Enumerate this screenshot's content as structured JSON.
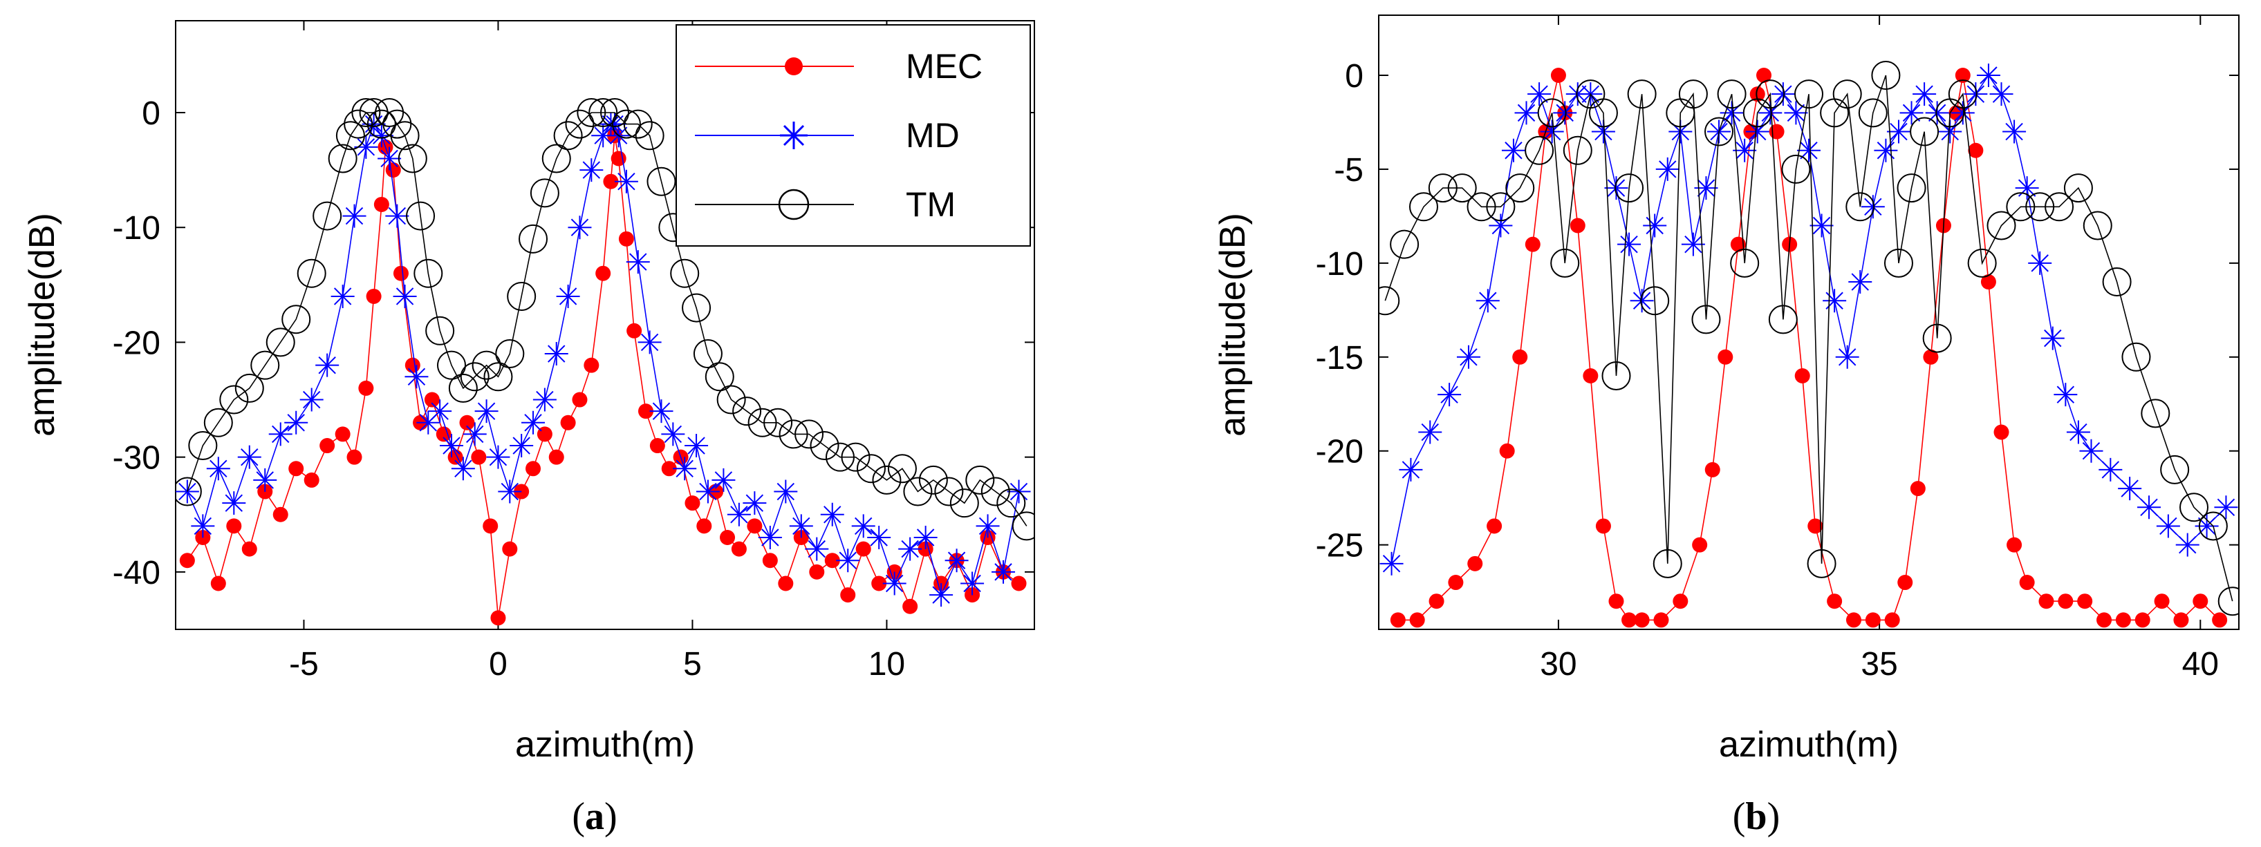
{
  "figure": {
    "captions": [
      {
        "open": "(",
        "letter": "a",
        "close": ")"
      },
      {
        "open": "(",
        "letter": "b",
        "close": ")"
      }
    ]
  },
  "chart_data": [
    {
      "id": "a",
      "type": "line",
      "xlabel": "azimuth(m)",
      "ylabel": "amplitude(dB)",
      "xlim": [
        -8.3,
        13.8
      ],
      "ylim": [
        -45,
        8
      ],
      "xticks": [
        -5,
        0,
        5,
        10
      ],
      "yticks": [
        0,
        -10,
        -20,
        -30,
        -40
      ],
      "legend": {
        "position": "top-right"
      },
      "series": [
        {
          "name": "MEC",
          "color": "#ff0000",
          "marker": "filled-circle",
          "x": [
            -8.0,
            -7.6,
            -7.2,
            -6.8,
            -6.4,
            -6.0,
            -5.6,
            -5.2,
            -4.8,
            -4.4,
            -4.0,
            -3.7,
            -3.4,
            -3.2,
            -3.0,
            -2.9,
            -2.7,
            -2.5,
            -2.2,
            -2.0,
            -1.7,
            -1.4,
            -1.1,
            -0.8,
            -0.5,
            -0.2,
            0.0,
            0.3,
            0.6,
            0.9,
            1.2,
            1.5,
            1.8,
            2.1,
            2.4,
            2.7,
            2.9,
            3.0,
            3.1,
            3.3,
            3.5,
            3.8,
            4.1,
            4.4,
            4.7,
            5.0,
            5.3,
            5.6,
            5.9,
            6.2,
            6.6,
            7.0,
            7.4,
            7.8,
            8.2,
            8.6,
            9.0,
            9.4,
            9.8,
            10.2,
            10.6,
            11.0,
            11.4,
            11.8,
            12.2,
            12.6,
            13.0,
            13.4
          ],
          "y": [
            -39,
            -37,
            -41,
            -36,
            -38,
            -33,
            -35,
            -31,
            -32,
            -29,
            -28,
            -30,
            -24,
            -16,
            -8,
            -3,
            -5,
            -14,
            -22,
            -27,
            -25,
            -28,
            -30,
            -27,
            -30,
            -36,
            -44,
            -38,
            -33,
            -31,
            -28,
            -30,
            -27,
            -25,
            -22,
            -14,
            -6,
            -2,
            -4,
            -11,
            -19,
            -26,
            -29,
            -31,
            -30,
            -34,
            -36,
            -33,
            -37,
            -38,
            -36,
            -39,
            -41,
            -37,
            -40,
            -39,
            -42,
            -38,
            -41,
            -40,
            -43,
            -38,
            -41,
            -39,
            -42,
            -37,
            -40,
            -41
          ]
        },
        {
          "name": "MD",
          "color": "#0000ff",
          "marker": "star",
          "x": [
            -8.0,
            -7.6,
            -7.2,
            -6.8,
            -6.4,
            -6.0,
            -5.6,
            -5.2,
            -4.8,
            -4.4,
            -4.0,
            -3.7,
            -3.4,
            -3.2,
            -3.0,
            -2.8,
            -2.6,
            -2.4,
            -2.1,
            -1.8,
            -1.5,
            -1.2,
            -0.9,
            -0.6,
            -0.3,
            0.0,
            0.3,
            0.6,
            0.9,
            1.2,
            1.5,
            1.8,
            2.1,
            2.4,
            2.7,
            2.9,
            3.0,
            3.1,
            3.3,
            3.6,
            3.9,
            4.2,
            4.5,
            4.8,
            5.1,
            5.4,
            5.8,
            6.2,
            6.6,
            7.0,
            7.4,
            7.8,
            8.2,
            8.6,
            9.0,
            9.4,
            9.8,
            10.2,
            10.6,
            11.0,
            11.4,
            11.8,
            12.2,
            12.6,
            13.0,
            13.4
          ],
          "y": [
            -33,
            -36,
            -31,
            -34,
            -30,
            -32,
            -28,
            -27,
            -25,
            -22,
            -16,
            -9,
            -3,
            -1,
            -2,
            -4,
            -9,
            -16,
            -23,
            -27,
            -26,
            -29,
            -31,
            -28,
            -26,
            -30,
            -33,
            -29,
            -27,
            -25,
            -21,
            -16,
            -10,
            -5,
            -2,
            -1,
            -1,
            -2,
            -6,
            -13,
            -20,
            -26,
            -28,
            -31,
            -29,
            -33,
            -32,
            -35,
            -34,
            -37,
            -33,
            -36,
            -38,
            -35,
            -39,
            -36,
            -37,
            -41,
            -38,
            -37,
            -42,
            -39,
            -41,
            -36,
            -40,
            -33
          ]
        },
        {
          "name": "TM",
          "color": "#000000",
          "marker": "open-circle",
          "x": [
            -8.0,
            -7.6,
            -7.2,
            -6.8,
            -6.4,
            -6.0,
            -5.6,
            -5.2,
            -4.8,
            -4.4,
            -4.0,
            -3.8,
            -3.6,
            -3.4,
            -3.2,
            -3.0,
            -2.8,
            -2.6,
            -2.4,
            -2.2,
            -2.0,
            -1.8,
            -1.5,
            -1.2,
            -0.9,
            -0.6,
            -0.3,
            0.0,
            0.3,
            0.6,
            0.9,
            1.2,
            1.5,
            1.8,
            2.1,
            2.4,
            2.7,
            3.0,
            3.3,
            3.6,
            3.9,
            4.2,
            4.5,
            4.8,
            5.1,
            5.4,
            5.7,
            6.0,
            6.4,
            6.8,
            7.2,
            7.6,
            8.0,
            8.4,
            8.8,
            9.2,
            9.6,
            10.0,
            10.4,
            10.8,
            11.2,
            11.6,
            12.0,
            12.4,
            12.8,
            13.2,
            13.6
          ],
          "y": [
            -33,
            -29,
            -27,
            -25,
            -24,
            -22,
            -20,
            -18,
            -14,
            -9,
            -4,
            -2,
            -1,
            0,
            0,
            -1,
            0,
            -1,
            -2,
            -4,
            -9,
            -14,
            -19,
            -22,
            -24,
            -23,
            -22,
            -23,
            -21,
            -16,
            -11,
            -7,
            -4,
            -2,
            -1,
            0,
            0,
            0,
            -1,
            -1,
            -2,
            -6,
            -10,
            -14,
            -17,
            -21,
            -23,
            -25,
            -26,
            -27,
            -27,
            -28,
            -28,
            -29,
            -30,
            -30,
            -31,
            -32,
            -31,
            -33,
            -32,
            -33,
            -34,
            -32,
            -33,
            -34,
            -36
          ]
        }
      ]
    },
    {
      "id": "b",
      "type": "line",
      "xlabel": "azimuth(m)",
      "ylabel": "amplitude(dB)",
      "xlim": [
        27.2,
        40.6
      ],
      "ylim": [
        -29.5,
        3.2
      ],
      "xticks": [
        30,
        35,
        40
      ],
      "yticks": [
        0,
        -5,
        -10,
        -15,
        -20,
        -25
      ],
      "legend": {
        "position": "none"
      },
      "series": [
        {
          "name": "MEC",
          "color": "#ff0000",
          "marker": "filled-circle",
          "x": [
            27.5,
            27.8,
            28.1,
            28.4,
            28.7,
            29.0,
            29.2,
            29.4,
            29.6,
            29.8,
            30.0,
            30.1,
            30.3,
            30.5,
            30.7,
            30.9,
            31.1,
            31.3,
            31.6,
            31.9,
            32.2,
            32.4,
            32.6,
            32.8,
            33.0,
            33.1,
            33.2,
            33.4,
            33.6,
            33.8,
            34.0,
            34.3,
            34.6,
            34.9,
            35.2,
            35.4,
            35.6,
            35.8,
            36.0,
            36.2,
            36.3,
            36.5,
            36.7,
            36.9,
            37.1,
            37.3,
            37.6,
            37.9,
            38.2,
            38.5,
            38.8,
            39.1,
            39.4,
            39.7,
            40.0,
            40.3
          ],
          "y": [
            -29,
            -29,
            -28,
            -27,
            -26,
            -24,
            -20,
            -15,
            -9,
            -3,
            0,
            -2,
            -8,
            -16,
            -24,
            -28,
            -29,
            -29,
            -29,
            -28,
            -25,
            -21,
            -15,
            -9,
            -3,
            -1,
            0,
            -3,
            -9,
            -16,
            -24,
            -28,
            -29,
            -29,
            -29,
            -27,
            -22,
            -15,
            -8,
            -2,
            0,
            -4,
            -11,
            -19,
            -25,
            -27,
            -28,
            -28,
            -28,
            -29,
            -29,
            -29,
            -28,
            -29,
            -28,
            -29
          ]
        },
        {
          "name": "MD",
          "color": "#0000ff",
          "marker": "star",
          "x": [
            27.4,
            27.7,
            28.0,
            28.3,
            28.6,
            28.9,
            29.1,
            29.3,
            29.5,
            29.7,
            29.9,
            30.1,
            30.3,
            30.5,
            30.7,
            30.9,
            31.1,
            31.3,
            31.5,
            31.7,
            31.9,
            32.1,
            32.3,
            32.5,
            32.7,
            32.9,
            33.1,
            33.3,
            33.5,
            33.7,
            33.9,
            34.1,
            34.3,
            34.5,
            34.7,
            34.9,
            35.1,
            35.3,
            35.5,
            35.7,
            35.9,
            36.1,
            36.3,
            36.5,
            36.7,
            36.9,
            37.1,
            37.3,
            37.5,
            37.7,
            37.9,
            38.1,
            38.3,
            38.6,
            38.9,
            39.2,
            39.5,
            39.8,
            40.1,
            40.4
          ],
          "y": [
            -26,
            -21,
            -19,
            -17,
            -15,
            -12,
            -8,
            -4,
            -2,
            -1,
            -3,
            -2,
            -1,
            -1,
            -3,
            -6,
            -9,
            -12,
            -8,
            -5,
            -3,
            -9,
            -6,
            -3,
            -2,
            -4,
            -3,
            -2,
            -1,
            -2,
            -4,
            -8,
            -12,
            -15,
            -11,
            -7,
            -4,
            -3,
            -2,
            -1,
            -2,
            -3,
            -2,
            -1,
            0,
            -1,
            -3,
            -6,
            -10,
            -14,
            -17,
            -19,
            -20,
            -21,
            -22,
            -23,
            -24,
            -25,
            -24,
            -23
          ]
        },
        {
          "name": "TM",
          "color": "#000000",
          "marker": "open-circle",
          "x": [
            27.3,
            27.6,
            27.9,
            28.2,
            28.5,
            28.8,
            29.1,
            29.4,
            29.7,
            29.9,
            30.1,
            30.3,
            30.5,
            30.7,
            30.9,
            31.1,
            31.3,
            31.5,
            31.7,
            31.9,
            32.1,
            32.3,
            32.5,
            32.7,
            32.9,
            33.1,
            33.3,
            33.5,
            33.7,
            33.9,
            34.1,
            34.3,
            34.5,
            34.7,
            34.9,
            35.1,
            35.3,
            35.5,
            35.7,
            35.9,
            36.1,
            36.3,
            36.6,
            36.9,
            37.2,
            37.5,
            37.8,
            38.1,
            38.4,
            38.7,
            39.0,
            39.3,
            39.6,
            39.9,
            40.2,
            40.5
          ],
          "y": [
            -12,
            -9,
            -7,
            -6,
            -6,
            -7,
            -7,
            -6,
            -4,
            -2,
            -10,
            -4,
            -1,
            -2,
            -16,
            -6,
            -1,
            -12,
            -26,
            -2,
            -1,
            -13,
            -3,
            -1,
            -10,
            -2,
            -1,
            -13,
            -5,
            -1,
            -26,
            -2,
            -1,
            -7,
            -2,
            0,
            -10,
            -6,
            -3,
            -14,
            -2,
            -1,
            -10,
            -8,
            -7,
            -7,
            -7,
            -6,
            -8,
            -11,
            -15,
            -18,
            -21,
            -23,
            -24,
            -28
          ]
        }
      ]
    }
  ]
}
